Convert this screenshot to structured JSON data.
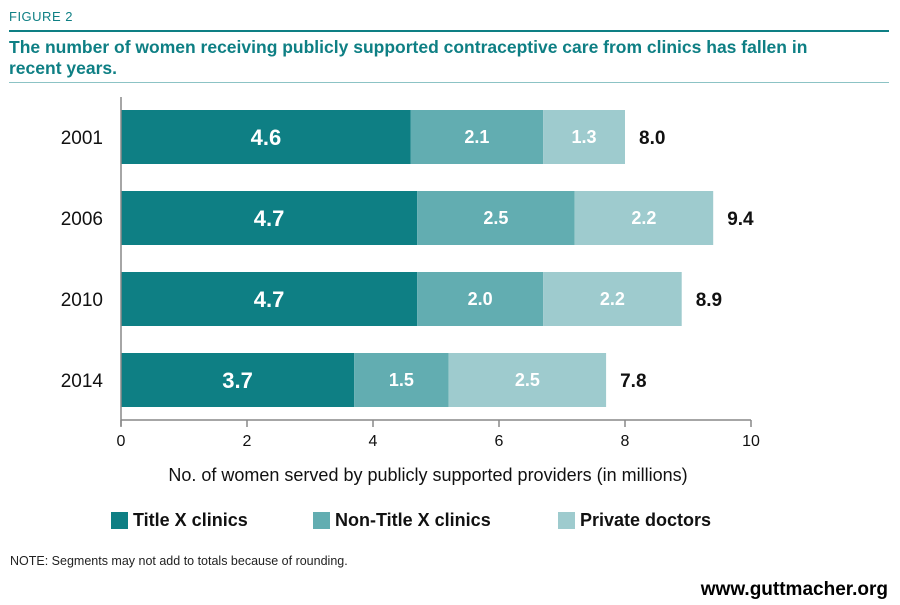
{
  "figure_label": "FIGURE 2",
  "title": "The number of women receiving publicly supported contraceptive care from clinics has fallen in recent years.",
  "note": "NOTE: Segments may not add to totals because of rounding.",
  "source": "www.guttmacher.org",
  "colors": {
    "title_teal": "#0e7f84",
    "title_x": "#0e7f84",
    "non_title_x": "#62adb1",
    "private": "#9ecbce"
  },
  "chart_data": {
    "type": "bar",
    "orientation": "horizontal",
    "stacked": true,
    "categories": [
      "2001",
      "2006",
      "2010",
      "2014"
    ],
    "series": [
      {
        "name": "Title X clinics",
        "values": [
          4.6,
          4.7,
          4.7,
          3.7
        ],
        "labels": [
          "4.6",
          "4.7",
          "4.7",
          "3.7"
        ],
        "color": "#0e7f84"
      },
      {
        "name": "Non-Title X clinics",
        "values": [
          2.1,
          2.5,
          2.0,
          1.5
        ],
        "labels": [
          "2.1",
          "2.5",
          "2.0",
          "1.5"
        ],
        "color": "#62adb1"
      },
      {
        "name": "Private doctors",
        "values": [
          1.3,
          2.2,
          2.2,
          2.5
        ],
        "labels": [
          "1.3",
          "2.2",
          "2.2",
          "2.5"
        ],
        "color": "#9ecbce"
      }
    ],
    "totals": [
      8.0,
      9.4,
      8.9,
      7.8
    ],
    "total_labels": [
      "8.0",
      "9.4",
      "8.9",
      "7.8"
    ],
    "xlabel": "No. of women served by publicly supported providers (in millions)",
    "xlim": [
      0,
      10
    ],
    "xticks": [
      "0",
      "2",
      "4",
      "6",
      "8",
      "10"
    ],
    "legend_position": "bottom",
    "grid": false
  }
}
